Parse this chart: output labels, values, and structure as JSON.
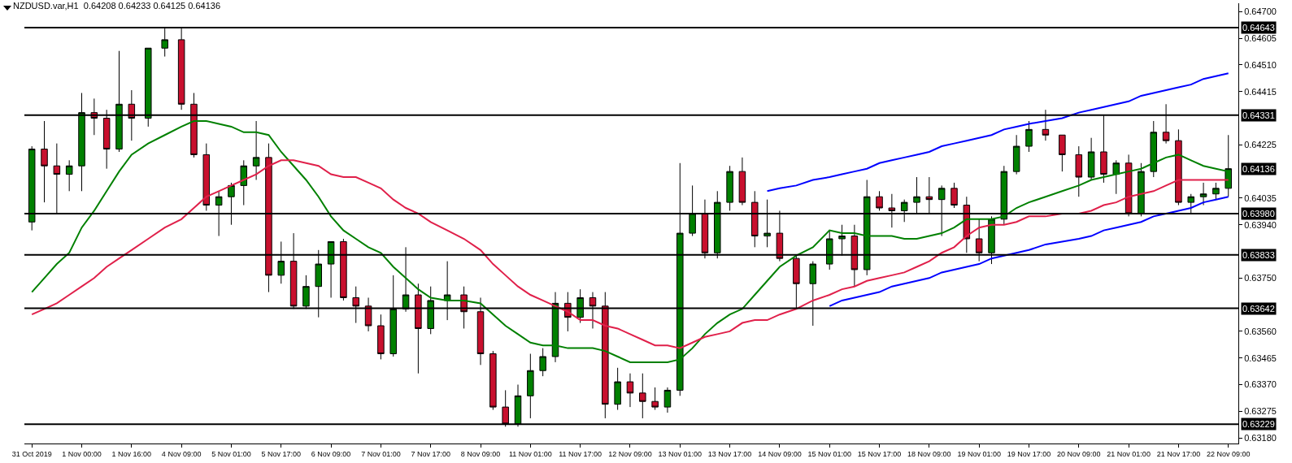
{
  "chart_data": {
    "type": "candlestick",
    "title": "NZDUSD.var,H1  0.64208 0.64233 0.64125 0.64136",
    "categories": [
      "31 Oct 2019",
      null,
      null,
      null,
      "1 Nov 00:00",
      null,
      null,
      null,
      "1 Nov 16:00",
      null,
      null,
      "4 Nov 09:00",
      null,
      null,
      null,
      "5 Nov 01:00",
      null,
      null,
      null,
      "5 Nov 17:00",
      null,
      null,
      null,
      "6 Nov 09:00",
      null,
      null,
      null,
      "7 Nov 01:00",
      null,
      null,
      null,
      "7 Nov 17:00",
      null,
      null,
      "8 Nov 09:00",
      null,
      null,
      null,
      "11 Nov 01:00",
      null,
      null,
      null,
      "11 Nov 17:00",
      null,
      null,
      null,
      "12 Nov 09:00",
      null,
      null,
      null,
      "13 Nov 01:00",
      null,
      null,
      null,
      "13 Nov 17:00",
      null,
      null,
      null,
      "14 Nov 09:00",
      null,
      null,
      "15 Nov 01:00",
      null,
      null,
      null,
      "15 Nov 17:00",
      null,
      null,
      null,
      "18 Nov 09:00",
      null,
      null,
      null,
      "19 Nov 01:00",
      null,
      null,
      null,
      "19 Nov 17:00",
      null,
      null,
      "20 Nov 09:00",
      null,
      null,
      null,
      "21 Nov 01:00",
      null,
      null,
      null,
      "21 Nov 17:00",
      null,
      null,
      null,
      "22 Nov 09:00"
    ],
    "ohlc": [
      [
        0.6395,
        0.6422,
        0.6392,
        0.6421
      ],
      [
        0.6421,
        0.6431,
        0.6402,
        0.6415
      ],
      [
        0.6415,
        0.6423,
        0.6398,
        0.6412
      ],
      [
        0.6412,
        0.6417,
        0.6406,
        0.6415
      ],
      [
        0.6415,
        0.6441,
        0.6406,
        0.6434
      ],
      [
        0.6434,
        0.6439,
        0.6426,
        0.6432
      ],
      [
        0.6432,
        0.6435,
        0.6414,
        0.6421
      ],
      [
        0.6421,
        0.6456,
        0.642,
        0.6437
      ],
      [
        0.6437,
        0.6442,
        0.6424,
        0.6432
      ],
      [
        0.6432,
        0.6457,
        0.6429,
        0.6457
      ],
      [
        0.6457,
        0.6464,
        0.6454,
        0.646
      ],
      [
        0.646,
        0.6464,
        0.6435,
        0.6437
      ],
      [
        0.6437,
        0.6441,
        0.6418,
        0.6419
      ],
      [
        0.6419,
        0.6423,
        0.6399,
        0.6401
      ],
      [
        0.6401,
        0.6406,
        0.639,
        0.6404
      ],
      [
        0.6404,
        0.6409,
        0.6394,
        0.6408
      ],
      [
        0.6408,
        0.6417,
        0.6401,
        0.6415
      ],
      [
        0.6415,
        0.6431,
        0.641,
        0.6418
      ],
      [
        0.6418,
        0.6423,
        0.637,
        0.6376
      ],
      [
        0.6376,
        0.6388,
        0.6373,
        0.6381
      ],
      [
        0.6381,
        0.6391,
        0.6364,
        0.6365
      ],
      [
        0.6365,
        0.6376,
        0.6364,
        0.6372
      ],
      [
        0.6372,
        0.6385,
        0.6361,
        0.638
      ],
      [
        0.638,
        0.6388,
        0.6368,
        0.6388
      ],
      [
        0.6388,
        0.6389,
        0.6367,
        0.6368
      ],
      [
        0.6368,
        0.6372,
        0.6359,
        0.6365
      ],
      [
        0.6365,
        0.6368,
        0.6356,
        0.6358
      ],
      [
        0.6358,
        0.6362,
        0.6346,
        0.6348
      ],
      [
        0.6348,
        0.6376,
        0.6347,
        0.6364
      ],
      [
        0.6364,
        0.6386,
        0.6363,
        0.6369
      ],
      [
        0.6369,
        0.6373,
        0.6341,
        0.6357
      ],
      [
        0.6357,
        0.6372,
        0.6355,
        0.6367
      ],
      [
        0.6367,
        0.6381,
        0.636,
        0.6369
      ],
      [
        0.6369,
        0.6372,
        0.6357,
        0.6363
      ],
      [
        0.6363,
        0.6368,
        0.6344,
        0.6348
      ],
      [
        0.6348,
        0.6349,
        0.6328,
        0.6329
      ],
      [
        0.6329,
        0.6335,
        0.6322,
        0.6323
      ],
      [
        0.6323,
        0.6337,
        0.6322,
        0.6333
      ],
      [
        0.6333,
        0.6348,
        0.6325,
        0.6342
      ],
      [
        0.6342,
        0.635,
        0.634,
        0.6347
      ],
      [
        0.6347,
        0.637,
        0.6345,
        0.6366
      ],
      [
        0.6366,
        0.637,
        0.6356,
        0.6361
      ],
      [
        0.6361,
        0.6371,
        0.6359,
        0.6368
      ],
      [
        0.6368,
        0.637,
        0.6357,
        0.6365
      ],
      [
        0.6365,
        0.637,
        0.6325,
        0.633
      ],
      [
        0.633,
        0.6343,
        0.6328,
        0.6338
      ],
      [
        0.6338,
        0.6341,
        0.6329,
        0.6334
      ],
      [
        0.6334,
        0.6341,
        0.6325,
        0.6331
      ],
      [
        0.6331,
        0.6336,
        0.6328,
        0.6329
      ],
      [
        0.6329,
        0.6336,
        0.6327,
        0.6335
      ],
      [
        0.6335,
        0.6416,
        0.6333,
        0.6391
      ],
      [
        0.6391,
        0.6408,
        0.639,
        0.6398
      ],
      [
        0.6398,
        0.6403,
        0.6382,
        0.6384
      ],
      [
        0.6384,
        0.6406,
        0.6382,
        0.6402
      ],
      [
        0.6402,
        0.6415,
        0.6399,
        0.6413
      ],
      [
        0.6413,
        0.6418,
        0.6401,
        0.6402
      ],
      [
        0.6402,
        0.6406,
        0.6386,
        0.639
      ],
      [
        0.639,
        0.6403,
        0.6386,
        0.6391
      ],
      [
        0.6391,
        0.6399,
        0.6381,
        0.6382
      ],
      [
        0.6382,
        0.6383,
        0.6364,
        0.6373
      ],
      [
        0.6373,
        0.6381,
        0.6358,
        0.638
      ],
      [
        0.638,
        0.6392,
        0.6378,
        0.6389
      ],
      [
        0.6389,
        0.6394,
        0.6383,
        0.639
      ],
      [
        0.639,
        0.6394,
        0.6372,
        0.6378
      ],
      [
        0.6378,
        0.641,
        0.6376,
        0.6404
      ],
      [
        0.6404,
        0.6406,
        0.6399,
        0.64
      ],
      [
        0.64,
        0.6405,
        0.6393,
        0.6399
      ],
      [
        0.6399,
        0.6403,
        0.6395,
        0.6402
      ],
      [
        0.6402,
        0.6411,
        0.6398,
        0.6404
      ],
      [
        0.6404,
        0.6411,
        0.6398,
        0.6403
      ],
      [
        0.6403,
        0.6408,
        0.639,
        0.6407
      ],
      [
        0.6407,
        0.6409,
        0.64,
        0.6401
      ],
      [
        0.6401,
        0.6404,
        0.6384,
        0.6389
      ],
      [
        0.6389,
        0.6396,
        0.6381,
        0.6384
      ],
      [
        0.6384,
        0.6397,
        0.638,
        0.6396
      ],
      [
        0.6396,
        0.6415,
        0.6394,
        0.6413
      ],
      [
        0.6413,
        0.6426,
        0.6412,
        0.6422
      ],
      [
        0.6422,
        0.6431,
        0.642,
        0.6428
      ],
      [
        0.6428,
        0.6435,
        0.6424,
        0.6426
      ],
      [
        0.6426,
        0.6426,
        0.6413,
        0.6419
      ],
      [
        0.6419,
        0.6422,
        0.6404,
        0.6411
      ],
      [
        0.6411,
        0.6425,
        0.641,
        0.642
      ],
      [
        0.642,
        0.6433,
        0.6409,
        0.6412
      ],
      [
        0.6412,
        0.6417,
        0.6405,
        0.6416
      ],
      [
        0.6416,
        0.6419,
        0.6397,
        0.6398
      ],
      [
        0.6398,
        0.6416,
        0.6397,
        0.6413
      ],
      [
        0.6413,
        0.6431,
        0.6411,
        0.6427
      ],
      [
        0.6427,
        0.6437,
        0.6423,
        0.6424
      ],
      [
        0.6424,
        0.6428,
        0.6401,
        0.6402
      ],
      [
        0.6402,
        0.6405,
        0.6398,
        0.6404
      ],
      [
        0.6404,
        0.6409,
        0.6401,
        0.6405
      ],
      [
        0.6405,
        0.6409,
        0.6403,
        0.6407
      ],
      [
        0.6407,
        0.6426,
        0.6404,
        0.6414
      ]
    ],
    "series": [
      {
        "type": "line",
        "color": "#008000",
        "values": [
          0.637,
          0.6375,
          0.638,
          0.6384,
          0.6393,
          0.6399,
          0.6406,
          0.6413,
          0.6419,
          0.6423,
          0.6426,
          0.6429,
          0.6431,
          0.6431,
          0.643,
          0.6429,
          0.6427,
          0.6427,
          0.6426,
          0.642,
          0.6415,
          0.641,
          0.6404,
          0.6397,
          0.6392,
          0.6389,
          0.6386,
          0.6384,
          0.6379,
          0.6375,
          0.6371,
          0.6368,
          0.6367,
          0.6367,
          0.6366,
          0.6362,
          0.6358,
          0.6355,
          0.6352,
          0.6351,
          0.6351,
          0.635,
          0.635,
          0.635,
          0.6349,
          0.6347,
          0.6345,
          0.6345,
          0.6345,
          0.6345,
          0.6346,
          0.635,
          0.6355,
          0.6359,
          0.6362,
          0.6364,
          0.6369,
          0.6374,
          0.6379,
          0.6383,
          0.6386,
          0.6392,
          0.6391,
          0.6391,
          0.639,
          0.639,
          0.639,
          0.6389,
          0.6389,
          0.639,
          0.6391,
          0.6393,
          0.6396,
          0.6396,
          0.6396,
          0.6397,
          0.64,
          0.6402,
          0.6404,
          0.6406,
          0.6408,
          0.641,
          0.6411,
          0.6412,
          0.6413,
          0.6414,
          0.6416,
          0.6418,
          0.6419,
          0.6417,
          0.6415,
          0.6414,
          0.6413
        ]
      },
      {
        "type": "line",
        "color": "#e0204a",
        "values": [
          0.6362,
          0.6364,
          0.6366,
          0.6369,
          0.6372,
          0.6375,
          0.6379,
          0.6382,
          0.6385,
          0.6389,
          0.6393,
          0.6396,
          0.64,
          0.6404,
          0.6406,
          0.6408,
          0.641,
          0.6412,
          0.6415,
          0.6417,
          0.6417,
          0.6416,
          0.6415,
          0.6412,
          0.6411,
          0.6411,
          0.6409,
          0.6407,
          0.6403,
          0.64,
          0.6398,
          0.6395,
          0.6392,
          0.6389,
          0.6385,
          0.638,
          0.6376,
          0.6372,
          0.6369,
          0.6367,
          0.6365,
          0.6363,
          0.636,
          0.636,
          0.6358,
          0.6357,
          0.6355,
          0.6353,
          0.6351,
          0.6351,
          0.635,
          0.6352,
          0.6354,
          0.6355,
          0.6356,
          0.6359,
          0.636,
          0.636,
          0.6362,
          0.6364,
          0.6367,
          0.6369,
          0.6371,
          0.6372,
          0.6374,
          0.6375,
          0.6376,
          0.6377,
          0.6379,
          0.6381,
          0.6384,
          0.6386,
          0.639,
          0.6393,
          0.6394,
          0.6394,
          0.6395,
          0.6397,
          0.6397,
          0.6398,
          0.6398,
          0.6399,
          0.6401,
          0.6402,
          0.6404,
          0.6405,
          0.6406,
          0.6408,
          0.641,
          0.641,
          0.641,
          0.641,
          0.641
        ]
      },
      {
        "type": "line",
        "color": "#0000ff",
        "values": [
          null,
          null,
          null,
          null,
          null,
          null,
          null,
          null,
          null,
          null,
          null,
          null,
          null,
          null,
          null,
          null,
          null,
          null,
          null,
          null,
          null,
          null,
          null,
          null,
          null,
          null,
          null,
          null,
          null,
          null,
          null,
          null,
          null,
          null,
          null,
          null,
          null,
          null,
          null,
          null,
          null,
          null,
          null,
          null,
          null,
          null,
          null,
          null,
          null,
          null,
          null,
          null,
          null,
          null,
          null,
          null,
          null,
          0.6406,
          0.6407,
          0.6408,
          0.641,
          0.6411,
          0.6412,
          0.6413,
          0.6414,
          0.6416,
          0.6417,
          0.6418,
          0.6419,
          0.642,
          0.6422,
          0.6423,
          0.6424,
          0.6425,
          0.6426,
          0.6428,
          0.6429,
          0.643,
          0.6431,
          0.6432,
          0.6434,
          0.6435,
          0.6436,
          0.6437,
          0.6438,
          0.644,
          0.6441,
          0.6442,
          0.6443,
          0.6444,
          0.6446,
          0.6447,
          0.6448
        ]
      },
      {
        "type": "line",
        "color": "#0000ff",
        "values": [
          null,
          null,
          null,
          null,
          null,
          null,
          null,
          null,
          null,
          null,
          null,
          null,
          null,
          null,
          null,
          null,
          null,
          null,
          null,
          null,
          null,
          null,
          null,
          null,
          null,
          null,
          null,
          null,
          null,
          null,
          null,
          null,
          null,
          null,
          null,
          null,
          null,
          null,
          null,
          null,
          null,
          null,
          null,
          null,
          null,
          null,
          null,
          null,
          null,
          null,
          null,
          null,
          null,
          null,
          null,
          null,
          null,
          null,
          null,
          null,
          null,
          0.6365,
          0.6367,
          0.6368,
          0.6369,
          0.637,
          0.6372,
          0.6373,
          0.6374,
          0.6375,
          0.6377,
          0.6378,
          0.6379,
          0.638,
          0.6382,
          0.6383,
          0.6384,
          0.6385,
          0.6387,
          0.6388,
          0.6389,
          0.639,
          0.6392,
          0.6393,
          0.6394,
          0.6395,
          0.6397,
          0.6398,
          0.6399,
          0.64,
          0.6402,
          0.6403,
          0.6404
        ]
      }
    ],
    "ref_lines": [
      {
        "axis": "y",
        "value": 0.64643,
        "label": "0.64643",
        "color": "#000000"
      },
      {
        "axis": "y",
        "value": 0.64331,
        "label": "0.64331",
        "color": "#000000"
      },
      {
        "axis": "y",
        "value": 0.6398,
        "label": "0.63980",
        "color": "#000000"
      },
      {
        "axis": "y",
        "value": 0.63833,
        "label": "0.63833",
        "color": "#000000"
      },
      {
        "axis": "y",
        "value": 0.63642,
        "label": "0.63642",
        "color": "#000000"
      },
      {
        "axis": "y",
        "value": 0.63229,
        "label": "0.63229",
        "color": "#000000"
      }
    ],
    "annotations": [
      "0.64136"
    ],
    "ylim": [
      0.6316,
      0.6473
    ],
    "yticks": [
      {
        "value": 0.647,
        "label": "0.64700"
      },
      0.64605,
      {
        "value": 0.6451,
        "label": "0.64510"
      },
      0.64415,
      0.64225,
      0.64035,
      {
        "value": 0.6394,
        "label": "0.63940"
      },
      {
        "value": 0.6375,
        "label": "0.63750"
      },
      {
        "value": 0.6356,
        "label": "0.63560"
      },
      0.63465,
      {
        "value": 0.6337,
        "label": "0.63370"
      },
      0.63275,
      {
        "value": 0.6318,
        "label": "0.63180"
      }
    ],
    "grid": false
  }
}
